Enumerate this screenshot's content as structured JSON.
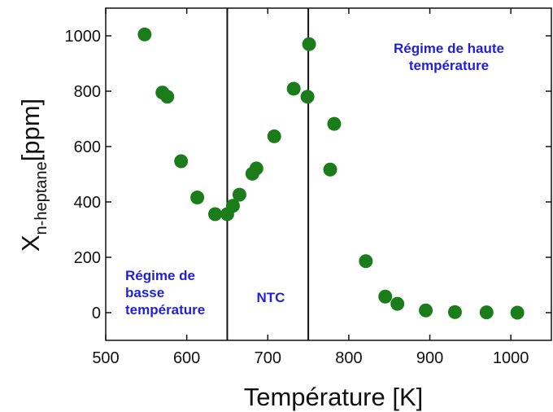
{
  "chart_data": {
    "type": "scatter",
    "xlabel": "Température [K]",
    "ylabel_main": "X",
    "ylabel_sub": "n-heptane",
    "ylabel_unit": "[ppm]",
    "xlim": [
      500,
      1050
    ],
    "ylim": [
      -100,
      1100
    ],
    "xticks": [
      500,
      600,
      700,
      800,
      900,
      1000
    ],
    "yticks": [
      0,
      200,
      400,
      600,
      800,
      1000
    ],
    "xtick_labels": [
      "500",
      "600",
      "700",
      "800",
      "900",
      "1000"
    ],
    "ytick_labels": [
      "0",
      "200",
      "400",
      "600",
      "800",
      "1000"
    ],
    "vlines": [
      650,
      750
    ],
    "point_color": "#1a7d1a",
    "annotation_color": "#1f1fdd",
    "points": [
      {
        "x": 548,
        "y": 1005
      },
      {
        "x": 570,
        "y": 795
      },
      {
        "x": 576,
        "y": 780
      },
      {
        "x": 593,
        "y": 547
      },
      {
        "x": 613,
        "y": 416
      },
      {
        "x": 635,
        "y": 356
      },
      {
        "x": 650,
        "y": 356
      },
      {
        "x": 657,
        "y": 386
      },
      {
        "x": 665,
        "y": 426
      },
      {
        "x": 681,
        "y": 502
      },
      {
        "x": 686,
        "y": 521
      },
      {
        "x": 708,
        "y": 637
      },
      {
        "x": 732,
        "y": 809
      },
      {
        "x": 749,
        "y": 780
      },
      {
        "x": 751,
        "y": 970
      },
      {
        "x": 777,
        "y": 517
      },
      {
        "x": 782,
        "y": 682
      },
      {
        "x": 821,
        "y": 186
      },
      {
        "x": 845,
        "y": 58
      },
      {
        "x": 860,
        "y": 32
      },
      {
        "x": 895,
        "y": 8
      },
      {
        "x": 931,
        "y": 2
      },
      {
        "x": 970,
        "y": 1
      },
      {
        "x": 1008,
        "y": 0
      }
    ],
    "annotations": [
      {
        "lines": [
          "Régime de",
          "basse",
          "température"
        ]
      },
      {
        "lines": [
          "NTC"
        ]
      },
      {
        "lines": [
          "Régime de haute",
          "température"
        ]
      }
    ]
  }
}
